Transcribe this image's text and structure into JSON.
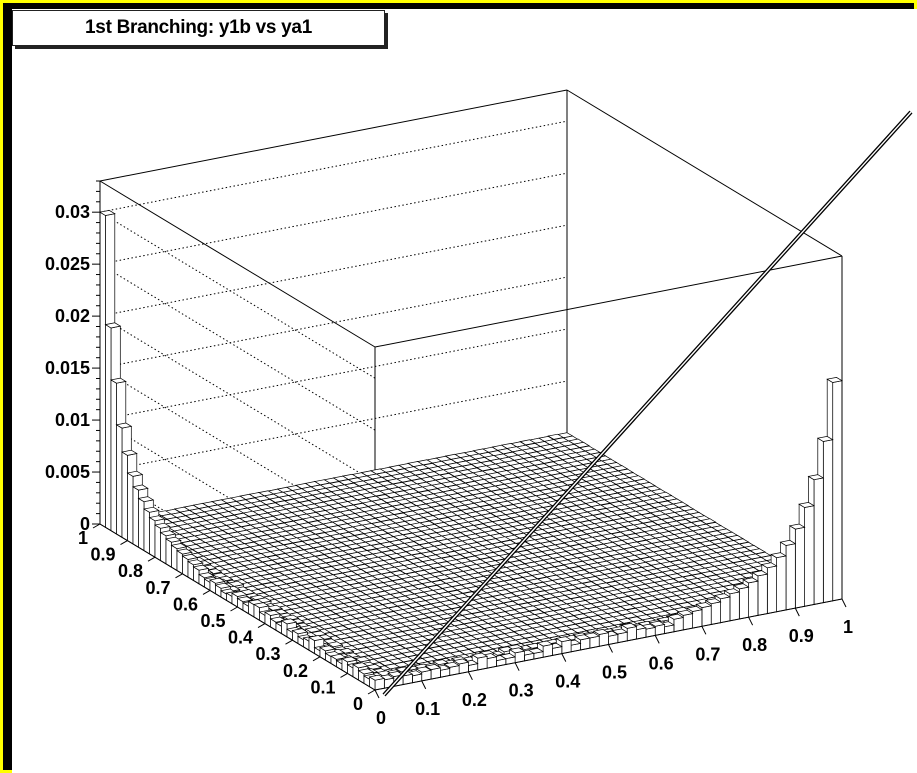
{
  "colors": {
    "frame": "#ffff00",
    "background": "#000000",
    "canvas": "#ffffff",
    "bars": "#ffffff",
    "lines": "#000000"
  },
  "chart_data": {
    "type": "lego3d",
    "title": "1st Branching: y1b vs ya1",
    "xlabel": "",
    "ylabel": "",
    "zlabel": "",
    "x_range": [
      0,
      1
    ],
    "y_range": [
      0,
      1
    ],
    "z_range": [
      0,
      0.033
    ],
    "x_ticks": [
      "0",
      "0.1",
      "0.2",
      "0.3",
      "0.4",
      "0.5",
      "0.6",
      "0.7",
      "0.8",
      "0.9",
      "1"
    ],
    "y_ticks": [
      "0",
      "0.1",
      "0.2",
      "0.3",
      "0.4",
      "0.5",
      "0.6",
      "0.7",
      "0.8",
      "0.9",
      "1"
    ],
    "z_ticks": [
      "0",
      "0.005",
      "0.01",
      "0.015",
      "0.02",
      "0.025",
      "0.03"
    ],
    "grid": true,
    "bins_x": 50,
    "bins_y": 50,
    "edge_x0_profile": {
      "description_free": true,
      "y": [
        0.99,
        0.97,
        0.95,
        0.93,
        0.91,
        0.89,
        0.87,
        0.85,
        0.83,
        0.81,
        0.79,
        0.77,
        0.75,
        0.73,
        0.71,
        0.69,
        0.67,
        0.65
      ],
      "z": [
        0.03,
        0.0195,
        0.0145,
        0.0105,
        0.0082,
        0.0065,
        0.0055,
        0.0047,
        0.004,
        0.0035,
        0.0031,
        0.0027,
        0.0024,
        0.0021,
        0.0019,
        0.0017,
        0.0015,
        0.0013
      ]
    },
    "edge_y0_profile": {
      "x": [
        0.99,
        0.97,
        0.95,
        0.93,
        0.91,
        0.89,
        0.87,
        0.85,
        0.83,
        0.81,
        0.79,
        0.77,
        0.75,
        0.73,
        0.71,
        0.69,
        0.67,
        0.65
      ],
      "z": [
        0.021,
        0.0155,
        0.012,
        0.0095,
        0.0076,
        0.0062,
        0.0052,
        0.0044,
        0.0038,
        0.0033,
        0.0029,
        0.0026,
        0.0023,
        0.002,
        0.0018,
        0.0016,
        0.0014,
        0.0012
      ]
    },
    "edge_base_level": 0.0009
  }
}
